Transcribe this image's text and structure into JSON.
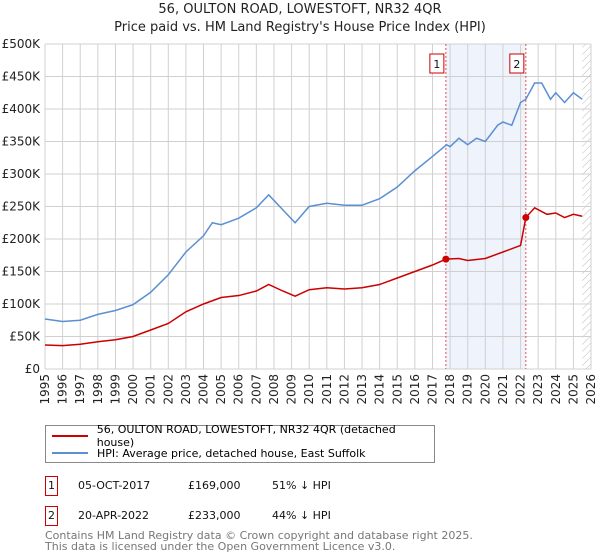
{
  "title": "56, OULTON ROAD, LOWESTOFT, NR32 4QR",
  "subtitle": "Price paid vs. HM Land Registry's House Price Index (HPI)",
  "chart_data": {
    "type": "line",
    "title": "56, OULTON ROAD, LOWESTOFT, NR32 4QR",
    "subtitle": "Price paid vs. HM Land Registry's House Price Index (HPI)",
    "xlim": [
      1995,
      2026
    ],
    "ylim": [
      0,
      500000
    ],
    "x_ticks": [
      "1995",
      "1996",
      "1997",
      "1998",
      "1999",
      "2000",
      "2001",
      "2002",
      "2003",
      "2004",
      "2005",
      "2006",
      "2007",
      "2008",
      "2009",
      "2010",
      "2011",
      "2012",
      "2013",
      "2014",
      "2015",
      "2016",
      "2017",
      "2018",
      "2019",
      "2020",
      "2021",
      "2022",
      "2023",
      "2024",
      "2025",
      "2026"
    ],
    "y_ticks": [
      {
        "v": 0,
        "l": "£0"
      },
      {
        "v": 50000,
        "l": "£50K"
      },
      {
        "v": 100000,
        "l": "£100K"
      },
      {
        "v": 150000,
        "l": "£150K"
      },
      {
        "v": 200000,
        "l": "£200K"
      },
      {
        "v": 250000,
        "l": "£250K"
      },
      {
        "v": 300000,
        "l": "£300K"
      },
      {
        "v": 350000,
        "l": "£350K"
      },
      {
        "v": 400000,
        "l": "£400K"
      },
      {
        "v": 450000,
        "l": "£450K"
      },
      {
        "v": 500000,
        "l": "£500K"
      }
    ],
    "grid": true,
    "shaded_period": [
      2017.76,
      2022.3
    ],
    "forecast_start": 2025.5,
    "series": [
      {
        "name": "56, OULTON ROAD, LOWESTOFT, NR32 4QR (detached house)",
        "color": "#cc0000",
        "x": [
          1995,
          1996,
          1997,
          1998,
          1999,
          2000,
          2001,
          2002,
          2003,
          2004,
          2005,
          2006,
          2007,
          2007.7,
          2008.5,
          2009.2,
          2010,
          2011,
          2012,
          2013,
          2014,
          2015,
          2016,
          2017,
          2017.76,
          2018.5,
          2019,
          2020,
          2021,
          2022.0,
          2022.3,
          2022.8,
          2023.5,
          2024,
          2024.5,
          2025,
          2025.5
        ],
        "y": [
          37000,
          36000,
          38000,
          42000,
          45000,
          50000,
          60000,
          70000,
          88000,
          100000,
          110000,
          113000,
          120000,
          130000,
          120000,
          112000,
          122000,
          125000,
          123000,
          125000,
          130000,
          140000,
          150000,
          160000,
          169000,
          170000,
          167000,
          170000,
          180000,
          190000,
          233000,
          248000,
          238000,
          240000,
          233000,
          238000,
          235000
        ]
      },
      {
        "name": "HPI: Average price, detached house, East Suffolk",
        "color": "#5b8fd4",
        "x": [
          1995,
          1996,
          1997,
          1998,
          1999,
          2000,
          2001,
          2002,
          2003,
          2004,
          2004.5,
          2005,
          2006,
          2007,
          2007.7,
          2008.5,
          2009.2,
          2010,
          2011,
          2012,
          2013,
          2014,
          2015,
          2016,
          2017,
          2017.8,
          2018,
          2018.5,
          2019,
          2019.5,
          2020,
          2020.7,
          2021,
          2021.5,
          2022,
          2022.3,
          2022.8,
          2023.2,
          2023.7,
          2024,
          2024.5,
          2025,
          2025.5
        ],
        "y": [
          77000,
          73000,
          75000,
          84000,
          90000,
          99000,
          118000,
          145000,
          180000,
          205000,
          225000,
          222000,
          232000,
          248000,
          268000,
          245000,
          225000,
          250000,
          255000,
          252000,
          252000,
          262000,
          280000,
          305000,
          327000,
          345000,
          342000,
          355000,
          345000,
          355000,
          350000,
          375000,
          380000,
          375000,
          410000,
          415000,
          440000,
          440000,
          415000,
          425000,
          410000,
          425000,
          415000
        ]
      }
    ],
    "sales": [
      {
        "label": "1",
        "x": 2017.76,
        "y": 169000
      },
      {
        "label": "2",
        "x": 2022.3,
        "y": 233000
      }
    ]
  },
  "legend": {
    "property": "56, OULTON ROAD, LOWESTOFT, NR32 4QR (detached house)",
    "hpi": "HPI: Average price, detached house, East Suffolk"
  },
  "sales_table": [
    {
      "num": "1",
      "date": "05-OCT-2017",
      "price": "£169,000",
      "delta": "51% ↓ HPI"
    },
    {
      "num": "2",
      "date": "20-APR-2022",
      "price": "£233,000",
      "delta": "44% ↓ HPI"
    }
  ],
  "footer": {
    "line1": "Contains HM Land Registry data © Crown copyright and database right 2025.",
    "line2": "This data is licensed under the Open Government Licence v3.0."
  }
}
